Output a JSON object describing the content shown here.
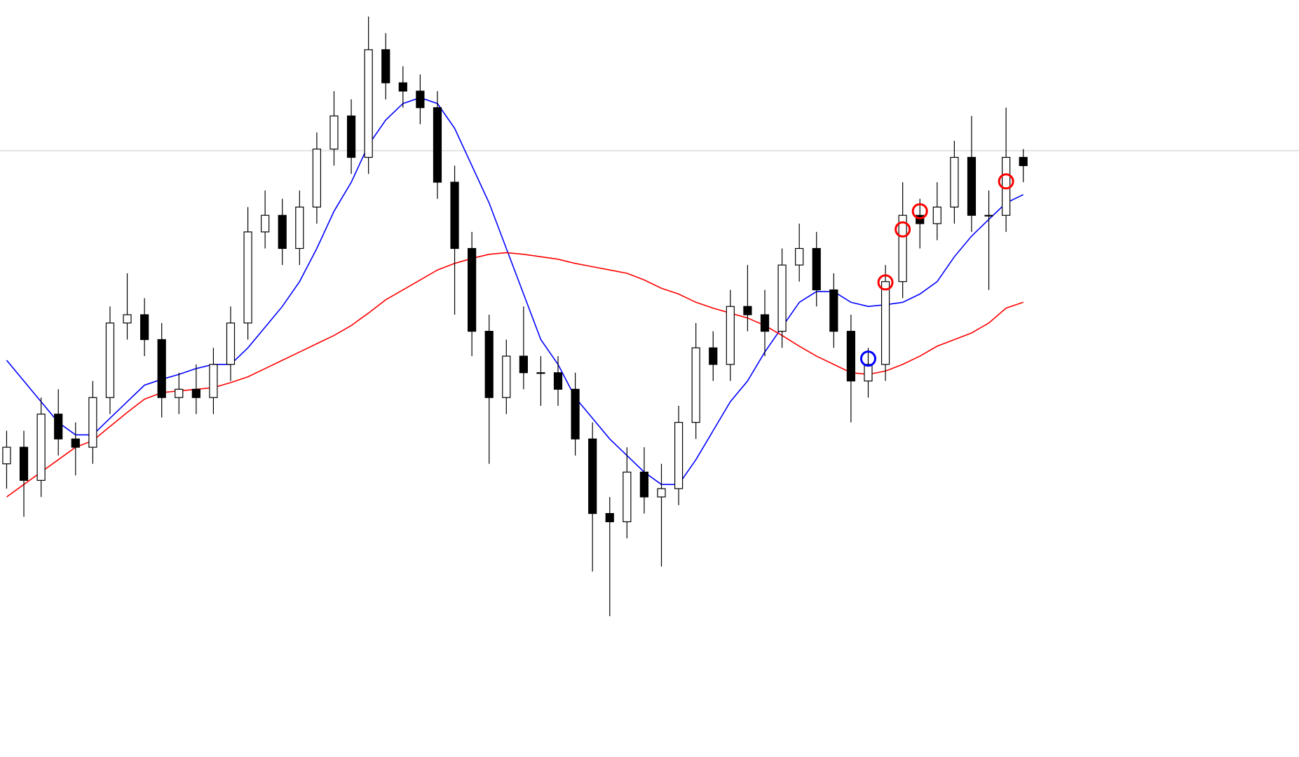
{
  "chart_data": {
    "type": "candlestick",
    "ylim": [
      0,
      914
    ],
    "hline": {
      "value": 732,
      "color": "#c8c8c8"
    },
    "up_color": "#ffffff",
    "down_color": "#000000",
    "wick_color": "#000000",
    "open": [
      354,
      374,
      334,
      414,
      384,
      374,
      434,
      524,
      534,
      504,
      434,
      444,
      434,
      474,
      524,
      634,
      654,
      614,
      664,
      734,
      774,
      724,
      854,
      814,
      804,
      784,
      694,
      614,
      514,
      434,
      484,
      464,
      464,
      444,
      384,
      294,
      284,
      344,
      314,
      324,
      404,
      494,
      474,
      544,
      534,
      514,
      594,
      614,
      564,
      514,
      454,
      474,
      574,
      654,
      644,
      664,
      724,
      654,
      654,
      724
    ],
    "high": [
      394,
      394,
      434,
      444,
      404,
      454,
      544,
      584,
      554,
      524,
      464,
      474,
      494,
      544,
      664,
      684,
      674,
      684,
      754,
      804,
      794,
      894,
      874,
      834,
      824,
      804,
      714,
      634,
      534,
      504,
      544,
      484,
      484,
      464,
      404,
      314,
      374,
      374,
      354,
      424,
      524,
      514,
      564,
      594,
      564,
      614,
      644,
      634,
      584,
      534,
      494,
      594,
      694,
      674,
      694,
      744,
      774,
      684,
      784,
      734
    ],
    "low": [
      324,
      290,
      314,
      364,
      340,
      354,
      414,
      504,
      484,
      410,
      414,
      414,
      414,
      454,
      504,
      614,
      594,
      594,
      644,
      714,
      704,
      704,
      794,
      784,
      764,
      674,
      534,
      484,
      354,
      414,
      444,
      424,
      424,
      364,
      224,
      170,
      264,
      294,
      230,
      304,
      384,
      454,
      454,
      514,
      484,
      494,
      574,
      544,
      494,
      404,
      434,
      454,
      554,
      614,
      624,
      644,
      634,
      564,
      634,
      694
    ],
    "close": [
      374,
      334,
      414,
      384,
      374,
      434,
      524,
      534,
      504,
      434,
      444,
      434,
      474,
      524,
      634,
      654,
      614,
      664,
      734,
      774,
      724,
      854,
      814,
      804,
      784,
      694,
      614,
      514,
      434,
      484,
      464,
      464,
      444,
      384,
      294,
      284,
      344,
      314,
      324,
      404,
      494,
      474,
      544,
      534,
      514,
      594,
      614,
      564,
      514,
      454,
      474,
      574,
      654,
      644,
      664,
      724,
      654,
      654,
      724,
      714
    ],
    "series": [
      {
        "color": "#0000ff",
        "values": [
          479,
          454,
          429,
          404,
          389,
          389,
          409,
          429,
          449,
          456,
          462,
          469,
          474,
          474,
          494,
          519,
          544,
          574,
          614,
          659,
          694,
          739,
          769,
          789,
          796,
          789,
          759,
          714,
          669,
          614,
          559,
          504,
          474,
          434,
          409,
          384,
          364,
          344,
          329,
          329,
          359,
          394,
          429,
          454,
          489,
          519,
          549,
          562,
          562,
          549,
          544,
          546,
          549,
          559,
          574,
          604,
          629,
          649,
          669,
          679
        ]
      },
      {
        "color": "#ff0000",
        "values": [
          314,
          329,
          344,
          359,
          374,
          382,
          399,
          416,
          432,
          440,
          442,
          444,
          446,
          452,
          459,
          469,
          479,
          489,
          499,
          509,
          521,
          536,
          552,
          564,
          576,
          588,
          596,
          602,
          607,
          609,
          607,
          604,
          601,
          596,
          592,
          588,
          584,
          576,
          566,
          559,
          549,
          542,
          536,
          530,
          521,
          509,
          496,
          484,
          474,
          464,
          462,
          466,
          474,
          484,
          496,
          504,
          512,
          524,
          542,
          549
        ]
      }
    ],
    "markers": [
      {
        "index": 50,
        "value": 481,
        "color": "#0000ff"
      },
      {
        "index": 51,
        "value": 573,
        "color": "#ff0000"
      },
      {
        "index": 52,
        "value": 637,
        "color": "#ff0000"
      },
      {
        "index": 53,
        "value": 659,
        "color": "#ff0000"
      },
      {
        "index": 58,
        "value": 695,
        "color": "#ff0000"
      }
    ]
  }
}
